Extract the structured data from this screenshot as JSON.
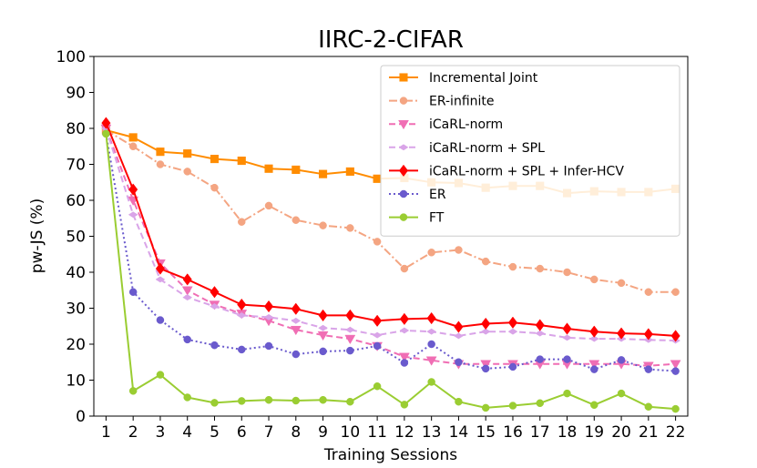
{
  "chart_data": {
    "type": "line",
    "title": "IIRC-2-CIFAR",
    "xlabel": "Training Sessions",
    "ylabel": "pw-JS (%)",
    "x": [
      1,
      2,
      3,
      4,
      5,
      6,
      7,
      8,
      9,
      10,
      11,
      12,
      13,
      14,
      15,
      16,
      17,
      18,
      19,
      20,
      21,
      22
    ],
    "xticks": [
      "1",
      "2",
      "3",
      "4",
      "5",
      "6",
      "7",
      "8",
      "9",
      "10",
      "11",
      "12",
      "13",
      "14",
      "15",
      "16",
      "17",
      "18",
      "19",
      "20",
      "21",
      "22"
    ],
    "ylim": [
      0,
      100
    ],
    "yticks": [
      "0",
      "10",
      "20",
      "30",
      "40",
      "50",
      "60",
      "70",
      "80",
      "90",
      "100"
    ],
    "grid": false,
    "legend_position": "top-right",
    "series": [
      {
        "name": "Incremental Joint",
        "color": "#ff8c00",
        "style": "solid",
        "marker": "square",
        "values": [
          79.5,
          77.5,
          73.5,
          73,
          71.5,
          71,
          68.8,
          68.5,
          67.3,
          68,
          66,
          66.2,
          65,
          64.8,
          63.5,
          64,
          64,
          62,
          62.5,
          62.3,
          62.3,
          63.2
        ]
      },
      {
        "name": "ER-infinite",
        "color": "#f4a582",
        "style": "dashdot",
        "marker": "circle",
        "values": [
          79.5,
          75,
          70,
          68,
          63.5,
          54,
          58.5,
          54.5,
          53,
          52.3,
          48.5,
          41,
          45.5,
          46.2,
          43,
          41.5,
          41,
          40,
          38,
          37,
          34.5,
          34.5
        ]
      },
      {
        "name": "iCaRL-norm",
        "color": "#f06eb4",
        "style": "dashed",
        "marker": "triangle-down",
        "values": [
          80,
          60,
          42.5,
          35,
          31,
          28.5,
          26.5,
          24,
          22.5,
          21.5,
          19.5,
          16.5,
          15.5,
          14.5,
          14.5,
          14.5,
          14.5,
          14.5,
          14.5,
          14.5,
          14,
          14.5
        ]
      },
      {
        "name": "iCaRL-norm + SPL",
        "color": "#d9a4e8",
        "style": "dashed",
        "marker": "thin-diamond",
        "values": [
          80,
          56,
          38,
          33,
          30.5,
          28,
          27.5,
          26.5,
          24.5,
          24,
          22.5,
          23.8,
          23.5,
          22.3,
          23.5,
          23.5,
          23,
          21.8,
          21.5,
          21.5,
          21.2,
          21
        ]
      },
      {
        "name": "iCaRL-norm + SPL + Infer-HCV",
        "color": "#ff0000",
        "style": "solid",
        "marker": "diamond",
        "values": [
          81.5,
          63,
          41,
          38,
          34.5,
          31,
          30.5,
          29.8,
          28,
          28,
          26.5,
          27,
          27.2,
          24.8,
          25.7,
          26,
          25.3,
          24.3,
          23.5,
          23,
          22.8,
          22.3
        ]
      },
      {
        "name": "ER",
        "color": "#6a5acd",
        "style": "dotted",
        "marker": "circle",
        "values": [
          78.5,
          34.5,
          26.7,
          21.3,
          19.7,
          18.5,
          19.5,
          17.2,
          18,
          18.2,
          19.5,
          14.8,
          20,
          15,
          13.2,
          13.7,
          15.8,
          15.8,
          13,
          15.6,
          13,
          12.5
        ]
      },
      {
        "name": "FT",
        "color": "#9acd32",
        "style": "solid",
        "marker": "circle",
        "values": [
          78.5,
          7,
          11.5,
          5.2,
          3.7,
          4.2,
          4.5,
          4.3,
          4.5,
          4,
          8.3,
          3.2,
          9.5,
          4,
          2.3,
          2.9,
          3.6,
          6.3,
          3.1,
          6.3,
          2.6,
          2
        ]
      }
    ]
  }
}
